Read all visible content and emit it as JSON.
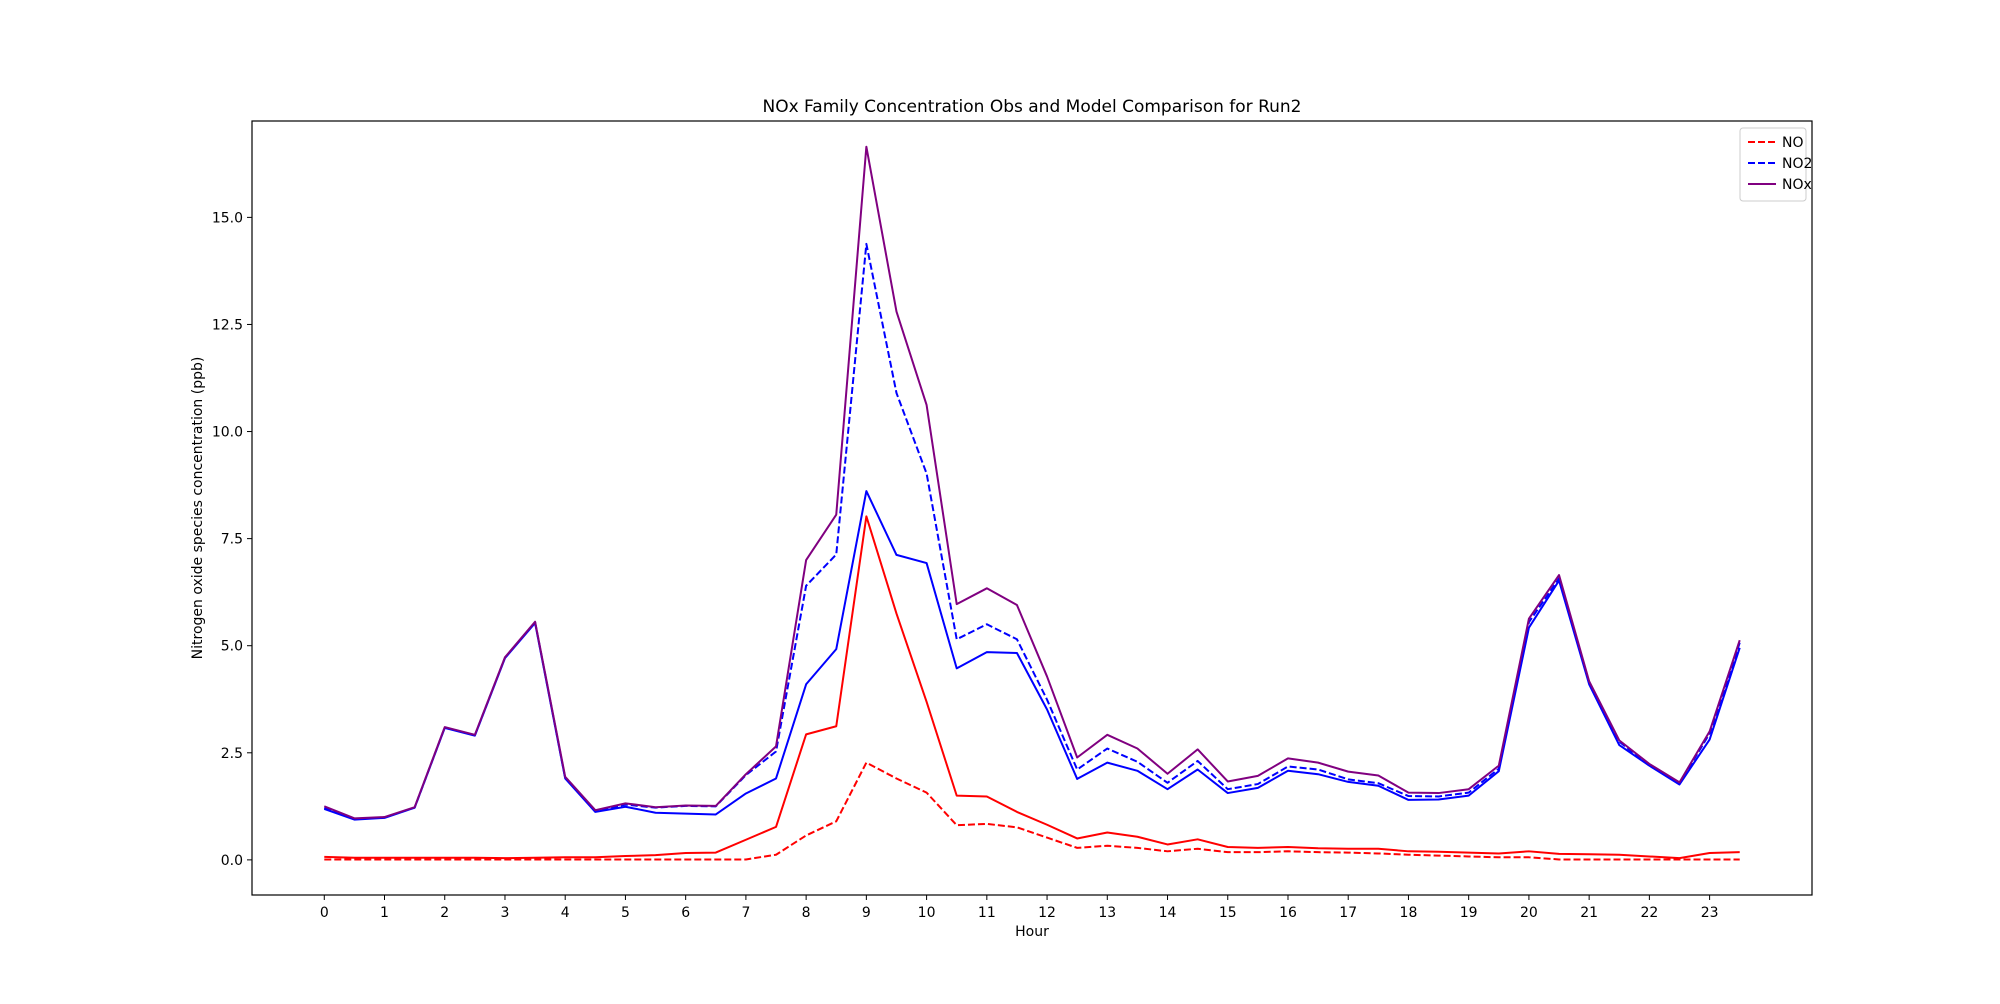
{
  "chart_data": {
    "type": "line",
    "title": "NOx Family Concentration Obs and Model Comparison for Run2",
    "xlabel": "Hour",
    "ylabel": "Nitrogen oxide species concentration (ppb)",
    "xlim": [
      -1.2,
      24.7
    ],
    "ylim": [
      -0.82,
      17.25
    ],
    "xticks": [
      0,
      1,
      2,
      3,
      4,
      5,
      6,
      7,
      8,
      9,
      10,
      11,
      12,
      13,
      14,
      15,
      16,
      17,
      18,
      19,
      20,
      21,
      22,
      23
    ],
    "yticks": [
      0.0,
      2.5,
      5.0,
      7.5,
      10.0,
      12.5,
      15.0
    ],
    "ytick_labels": [
      "0.0",
      "2.5",
      "5.0",
      "7.5",
      "10.0",
      "12.5",
      "15.0"
    ],
    "grid": false,
    "legend_position": "top-right",
    "legend": [
      {
        "label": "NO",
        "color": "#ff0000",
        "style": "dashed"
      },
      {
        "label": "NO2",
        "color": "#0000ff",
        "style": "dashed"
      },
      {
        "label": "NOx",
        "color": "#800080",
        "style": "solid"
      }
    ],
    "x": [
      0,
      0.5,
      1,
      1.5,
      2,
      2.5,
      3,
      3.5,
      4,
      4.5,
      5,
      5.5,
      6,
      6.5,
      7,
      7.5,
      8,
      8.5,
      9,
      9.5,
      10,
      10.5,
      11,
      11.5,
      12,
      12.5,
      13,
      13.5,
      14,
      14.5,
      15,
      15.5,
      16,
      16.5,
      17,
      17.5,
      18,
      18.5,
      19,
      19.5,
      20,
      20.5,
      21,
      21.5,
      22,
      22.5,
      23,
      23.5
    ],
    "series": [
      {
        "name": "NO",
        "color": "#ff0000",
        "style": "dashed",
        "values": [
          0.01,
          0.01,
          0.01,
          0.01,
          0.01,
          0.01,
          0.01,
          0.01,
          0.01,
          0.01,
          0.01,
          0.01,
          0.01,
          0.01,
          0.01,
          0.12,
          0.57,
          0.9,
          2.27,
          1.9,
          1.57,
          0.81,
          0.84,
          0.76,
          0.52,
          0.28,
          0.33,
          0.28,
          0.2,
          0.26,
          0.18,
          0.18,
          0.2,
          0.18,
          0.17,
          0.15,
          0.12,
          0.1,
          0.08,
          0.06,
          0.06,
          0.01,
          0.01,
          0.01,
          0.01,
          0.01,
          0.01,
          0.01
        ]
      },
      {
        "color": "#ff0000",
        "style": "solid",
        "values": [
          0.07,
          0.05,
          0.05,
          0.05,
          0.05,
          0.05,
          0.04,
          0.05,
          0.06,
          0.06,
          0.09,
          0.11,
          0.16,
          0.17,
          0.47,
          0.77,
          2.93,
          3.12,
          8.02,
          5.75,
          3.69,
          1.5,
          1.48,
          1.12,
          0.82,
          0.5,
          0.64,
          0.54,
          0.36,
          0.48,
          0.3,
          0.28,
          0.3,
          0.27,
          0.26,
          0.26,
          0.2,
          0.19,
          0.17,
          0.15,
          0.2,
          0.14,
          0.13,
          0.12,
          0.08,
          0.04,
          0.16,
          0.18
        ]
      },
      {
        "name": "NO2",
        "color": "#0000ff",
        "style": "dashed",
        "values": [
          1.21,
          0.95,
          0.99,
          1.22,
          3.09,
          2.91,
          4.72,
          5.55,
          1.91,
          1.14,
          1.29,
          1.22,
          1.26,
          1.25,
          1.98,
          2.53,
          6.4,
          7.13,
          14.38,
          10.9,
          9.02,
          5.15,
          5.5,
          5.15,
          3.74,
          2.11,
          2.6,
          2.29,
          1.8,
          2.31,
          1.65,
          1.77,
          2.18,
          2.11,
          1.88,
          1.79,
          1.49,
          1.48,
          1.57,
          2.13,
          5.55,
          6.57,
          4.15,
          2.76,
          2.2,
          1.79,
          2.95,
          5.07
        ]
      },
      {
        "color": "#0000ff",
        "style": "solid",
        "values": [
          1.19,
          0.94,
          0.98,
          1.22,
          3.08,
          2.9,
          4.71,
          5.53,
          1.9,
          1.12,
          1.24,
          1.1,
          1.08,
          1.06,
          1.55,
          1.9,
          4.1,
          4.92,
          8.61,
          7.12,
          6.93,
          4.47,
          4.85,
          4.83,
          3.51,
          1.89,
          2.27,
          2.08,
          1.65,
          2.11,
          1.56,
          1.68,
          2.08,
          2.0,
          1.82,
          1.73,
          1.4,
          1.41,
          1.5,
          2.07,
          5.42,
          6.52,
          4.1,
          2.68,
          2.2,
          1.76,
          2.81,
          4.95
        ]
      },
      {
        "name": "NOx",
        "color": "#800080",
        "style": "solid",
        "values": [
          1.25,
          0.97,
          1.0,
          1.23,
          3.1,
          2.92,
          4.73,
          5.56,
          1.94,
          1.16,
          1.32,
          1.23,
          1.27,
          1.26,
          2.0,
          2.65,
          7.0,
          8.06,
          16.65,
          12.8,
          10.62,
          5.97,
          6.34,
          5.95,
          4.28,
          2.39,
          2.92,
          2.6,
          2.01,
          2.58,
          1.83,
          1.96,
          2.37,
          2.27,
          2.06,
          1.97,
          1.57,
          1.56,
          1.65,
          2.2,
          5.63,
          6.65,
          4.17,
          2.79,
          2.24,
          1.81,
          3.0,
          5.13
        ]
      }
    ]
  }
}
